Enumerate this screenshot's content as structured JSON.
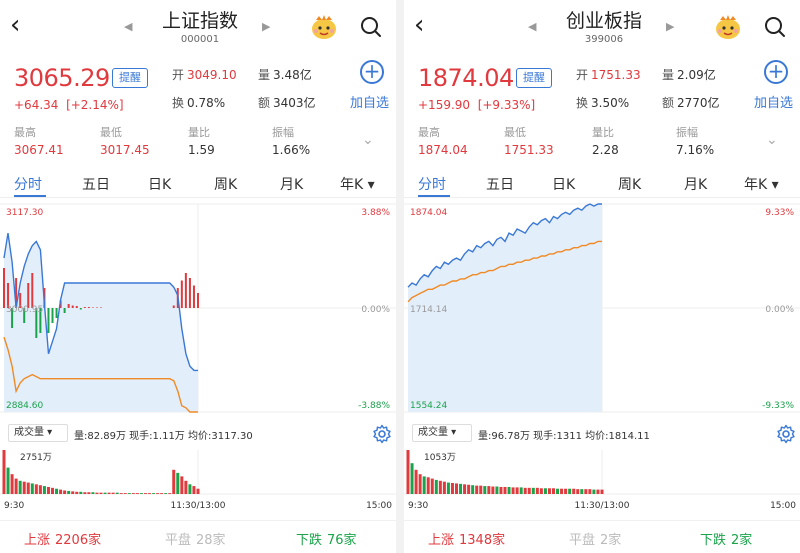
{
  "panels": [
    {
      "nav": {
        "back": "‹",
        "title": "上证指数",
        "code": "000001",
        "prev": "◀",
        "next": "▶"
      },
      "quote": {
        "price": "3065.29",
        "remind": "提醒",
        "change": "+64.34",
        "change_pct": "[+2.14%]",
        "open_k": "开",
        "open_v": "3049.10",
        "vol_k": "量",
        "vol_v": "3.48亿",
        "turn_k": "换",
        "turn_v": "0.78%",
        "amt_k": "额",
        "amt_v": "3403亿",
        "add_label": "加自选"
      },
      "stats": [
        {
          "k": "最高",
          "v": "3067.41",
          "red": true
        },
        {
          "k": "最低",
          "v": "3017.45",
          "red": true
        },
        {
          "k": "量比",
          "v": "1.59",
          "red": false
        },
        {
          "k": "振幅",
          "v": "1.66%",
          "red": false
        }
      ],
      "tabs": [
        "分时",
        "五日",
        "日K",
        "周K",
        "月K",
        "年K"
      ],
      "tab_more": "▾",
      "axis": {
        "top_left": "3117.30",
        "mid_left": "3000.95",
        "bot_left": "2884.60",
        "top_right": "3.88%",
        "mid_right": "0.00%",
        "bot_right": "-3.88%"
      },
      "volume_bar": {
        "select": "成交量",
        "info": "量:82.89万  现手:1.11万  均价:3117.30",
        "peak": "2751万"
      },
      "time_axis": {
        "start": "9:30",
        "mid": "11:30/13:00",
        "end": "15:00"
      },
      "footer": {
        "up_k": "上涨",
        "up_v": "2206家",
        "flat_k": "平盘",
        "flat_v": "28家",
        "down_k": "下跌",
        "down_v": "76家"
      },
      "price_series": [
        0.74,
        0.86,
        0.72,
        0.5,
        0.62,
        0.7,
        0.76,
        0.8,
        0.82,
        0.78,
        0.52,
        0.28,
        0.34,
        0.4,
        0.54,
        0.62,
        0.62,
        0.62,
        0.62,
        0.62,
        0.62,
        0.62,
        0.62,
        0.62,
        0.62,
        0.62,
        0.62,
        0.62,
        0.62,
        0.62,
        0.62,
        0.62,
        0.62,
        0.62,
        0.62,
        0.62,
        0.62,
        0.62,
        0.62,
        0.62,
        0.62,
        0.62,
        0.6,
        0.56,
        0.4,
        0.28,
        0.22,
        0.2,
        0.2
      ],
      "avg_series": [
        0.36,
        0.3,
        0.22,
        0.1,
        0.14,
        0.16,
        0.17,
        0.18,
        0.17,
        0.16,
        0.16,
        0.16,
        0.16,
        0.16,
        0.16,
        0.16,
        0.16,
        0.16,
        0.16,
        0.16,
        0.16,
        0.16,
        0.16,
        0.16,
        0.16,
        0.16,
        0.16,
        0.16,
        0.16,
        0.16,
        0.16,
        0.16,
        0.16,
        0.16,
        0.16,
        0.16,
        0.16,
        0.16,
        0.16,
        0.16,
        0.16,
        0.16,
        0.15,
        0.1,
        0.03,
        0.02,
        0.0,
        0.0,
        0.0
      ],
      "vol_series": [
        1.0,
        0.6,
        0.45,
        0.35,
        0.3,
        0.28,
        0.26,
        0.24,
        0.22,
        0.2,
        0.18,
        0.16,
        0.14,
        0.12,
        0.1,
        0.08,
        0.07,
        0.06,
        0.05,
        0.05,
        0.04,
        0.04,
        0.04,
        0.03,
        0.03,
        0.03,
        0.03,
        0.03,
        0.03,
        0.02,
        0.02,
        0.02,
        0.02,
        0.02,
        0.02,
        0.02,
        0.02,
        0.02,
        0.02,
        0.02,
        0.02,
        0.02,
        0.55,
        0.48,
        0.4,
        0.3,
        0.22,
        0.18,
        0.12
      ],
      "diff_series": [
        0.8,
        0.5,
        -0.4,
        0.6,
        0.3,
        -0.3,
        0.5,
        0.7,
        -0.6,
        -0.5,
        0.4,
        -0.5,
        -0.3,
        -0.2,
        0.15,
        -0.1,
        0.08,
        0.05,
        0.04,
        -0.03,
        0.02,
        0.02,
        0.01,
        0.01,
        0.01,
        0.0,
        0.0,
        0.0,
        0.0,
        0.0,
        0.0,
        0.0,
        0.0,
        0.0,
        0.0,
        0.0,
        0.0,
        0.0,
        0.0,
        0.0,
        0.0,
        0.0,
        0.05,
        0.4,
        0.55,
        0.7,
        0.6,
        0.45,
        0.3
      ]
    },
    {
      "nav": {
        "back": "‹",
        "title": "创业板指",
        "code": "399006",
        "prev": "◀",
        "next": "▶"
      },
      "quote": {
        "price": "1874.04",
        "remind": "提醒",
        "change": "+159.90",
        "change_pct": "[+9.33%]",
        "open_k": "开",
        "open_v": "1751.33",
        "vol_k": "量",
        "vol_v": "2.09亿",
        "turn_k": "换",
        "turn_v": "3.50%",
        "amt_k": "额",
        "amt_v": "2770亿",
        "add_label": "加自选"
      },
      "stats": [
        {
          "k": "最高",
          "v": "1874.04",
          "red": true
        },
        {
          "k": "最低",
          "v": "1751.33",
          "red": true
        },
        {
          "k": "量比",
          "v": "2.28",
          "red": false
        },
        {
          "k": "振幅",
          "v": "7.16%",
          "red": false
        }
      ],
      "tabs": [
        "分时",
        "五日",
        "日K",
        "周K",
        "月K",
        "年K"
      ],
      "tab_more": "▾",
      "axis": {
        "top_left": "1874.04",
        "mid_left": "1714.14",
        "bot_left": "1554.24",
        "top_right": "9.33%",
        "mid_right": "0.00%",
        "bot_right": "-9.33%"
      },
      "volume_bar": {
        "select": "成交量",
        "info": "量:96.78万  现手:1311  均价:1814.11",
        "peak": "1053万"
      },
      "time_axis": {
        "start": "9:30",
        "mid": "11:30/13:00",
        "end": "15:00"
      },
      "footer": {
        "up_k": "上涨",
        "up_v": "1348家",
        "flat_k": "平盘",
        "flat_v": "2家",
        "down_k": "下跌",
        "down_v": "2家"
      },
      "price_series": [
        0.6,
        0.62,
        0.61,
        0.64,
        0.66,
        0.65,
        0.68,
        0.7,
        0.69,
        0.72,
        0.71,
        0.73,
        0.74,
        0.73,
        0.76,
        0.78,
        0.77,
        0.8,
        0.79,
        0.81,
        0.82,
        0.8,
        0.83,
        0.84,
        0.82,
        0.86,
        0.85,
        0.88,
        0.87,
        0.86,
        0.89,
        0.91,
        0.9,
        0.92,
        0.93,
        0.91,
        0.94,
        0.93,
        0.95,
        0.96,
        0.95,
        0.97,
        0.98,
        0.97,
        0.99,
        1.0,
        0.99,
        1.0,
        1.0
      ],
      "avg_series": [
        0.53,
        0.55,
        0.56,
        0.57,
        0.58,
        0.59,
        0.59,
        0.6,
        0.61,
        0.61,
        0.62,
        0.63,
        0.63,
        0.64,
        0.64,
        0.65,
        0.66,
        0.66,
        0.67,
        0.67,
        0.68,
        0.68,
        0.69,
        0.7,
        0.7,
        0.71,
        0.71,
        0.72,
        0.72,
        0.73,
        0.73,
        0.74,
        0.74,
        0.75,
        0.75,
        0.76,
        0.76,
        0.77,
        0.77,
        0.78,
        0.78,
        0.79,
        0.79,
        0.8,
        0.8,
        0.81,
        0.81,
        0.82,
        0.82
      ],
      "vol_series": [
        1.0,
        0.7,
        0.55,
        0.45,
        0.4,
        0.38,
        0.35,
        0.32,
        0.3,
        0.28,
        0.26,
        0.25,
        0.24,
        0.23,
        0.22,
        0.21,
        0.2,
        0.19,
        0.19,
        0.18,
        0.18,
        0.17,
        0.17,
        0.16,
        0.16,
        0.16,
        0.15,
        0.15,
        0.15,
        0.14,
        0.14,
        0.14,
        0.14,
        0.13,
        0.13,
        0.13,
        0.13,
        0.12,
        0.12,
        0.12,
        0.12,
        0.12,
        0.11,
        0.11,
        0.11,
        0.11,
        0.1,
        0.1,
        0.1
      ],
      "diff_series": []
    }
  ],
  "colors": {
    "up": "#e0393e",
    "down": "#1aa34a",
    "accent": "#3a78d6",
    "price_line": "#3a78d6",
    "avg_line": "#f08a24",
    "fill": "#e3eefb",
    "flat": "#bbbbbb"
  }
}
